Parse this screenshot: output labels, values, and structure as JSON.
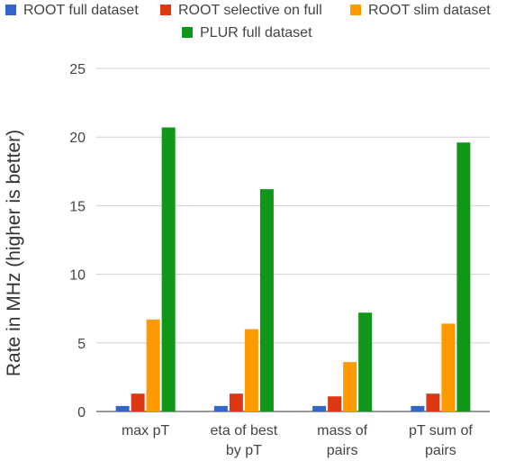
{
  "chart_data": {
    "type": "bar",
    "title": "",
    "xlabel": "",
    "ylabel": "Rate in MHz (higher is better)",
    "ylim": [
      0,
      25
    ],
    "yticks": [
      0,
      5,
      10,
      15,
      20,
      25
    ],
    "grid": true,
    "legend_position": "top",
    "categories": [
      [
        "max pT"
      ],
      [
        "eta of best",
        "by pT"
      ],
      [
        "mass of",
        "pairs"
      ],
      [
        "pT sum of",
        "pairs"
      ]
    ],
    "series": [
      {
        "name": "ROOT full dataset",
        "color": "#3366cc",
        "values": [
          0.4,
          0.4,
          0.4,
          0.4
        ]
      },
      {
        "name": "ROOT selective on full",
        "color": "#dc3912",
        "values": [
          1.3,
          1.3,
          1.1,
          1.3
        ]
      },
      {
        "name": "ROOT slim dataset",
        "color": "#ff9900",
        "values": [
          6.7,
          6.0,
          3.6,
          6.4
        ]
      },
      {
        "name": "PLUR full dataset",
        "color": "#109618",
        "values": [
          20.7,
          16.2,
          7.2,
          19.6
        ]
      }
    ]
  }
}
